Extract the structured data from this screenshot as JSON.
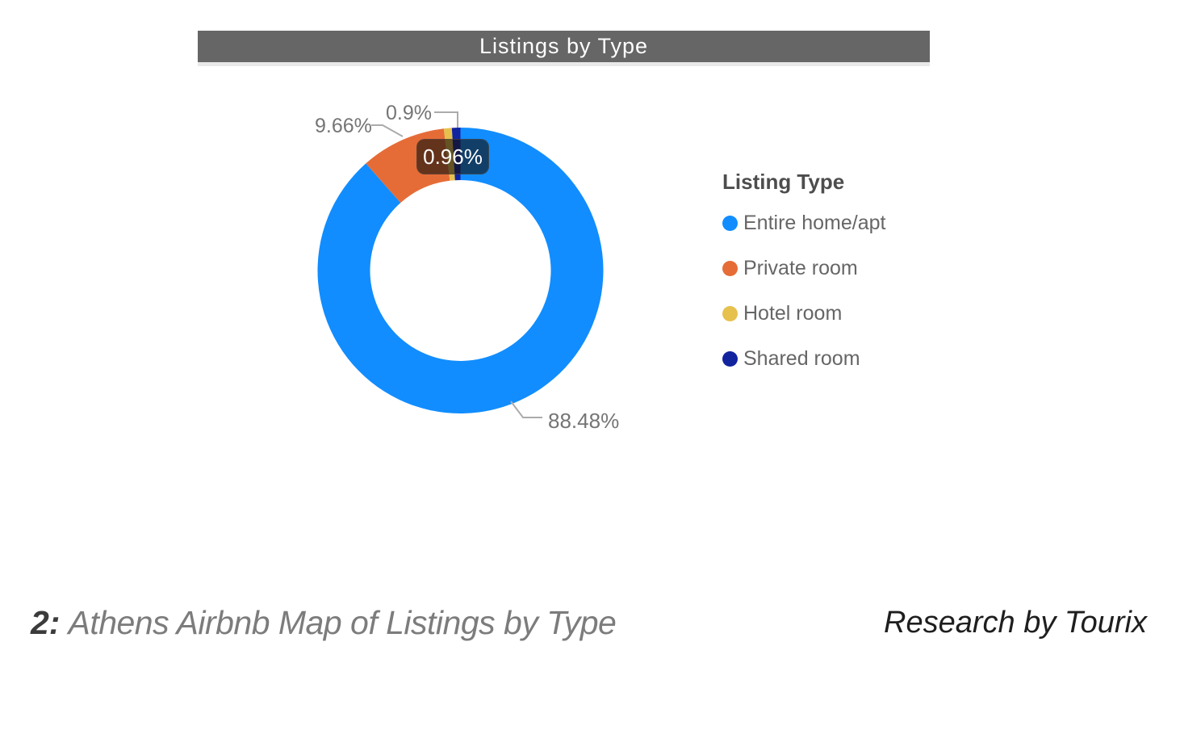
{
  "chart": {
    "title": "Listings by Type",
    "legend": {
      "title": "Listing Type",
      "items": [
        {
          "label": "Entire home/apt",
          "color": "#118DFF"
        },
        {
          "label": "Private room",
          "color": "#E66C37"
        },
        {
          "label": "Hotel room",
          "color": "#E6C14D"
        },
        {
          "label": "Shared room",
          "color": "#12239E"
        }
      ]
    },
    "callouts": {
      "entire": "88.48%",
      "private": "9.66%",
      "hotel": "0.9%"
    },
    "tooltip_value": "0.96%"
  },
  "chart_data": {
    "type": "pie",
    "subtype": "donut",
    "title": "Listings by Type",
    "legend_title": "Listing Type",
    "legend_position": "right",
    "categories": [
      "Entire home/apt",
      "Private room",
      "Hotel room",
      "Shared room"
    ],
    "values": [
      88.48,
      9.66,
      0.9,
      0.96
    ],
    "unit": "%",
    "colors": [
      "#118DFF",
      "#E66C37",
      "#E6C14D",
      "#12239E"
    ],
    "callout_labels": [
      "88.48%",
      "9.66%",
      "0.9%"
    ],
    "hover_tooltip": "0.96%",
    "start_angle_deg": 0,
    "direction": "clockwise"
  },
  "caption": {
    "figure_number": "2:",
    "text": "Athens Airbnb Map of Listings by Type",
    "credit": "Research by Tourix"
  }
}
